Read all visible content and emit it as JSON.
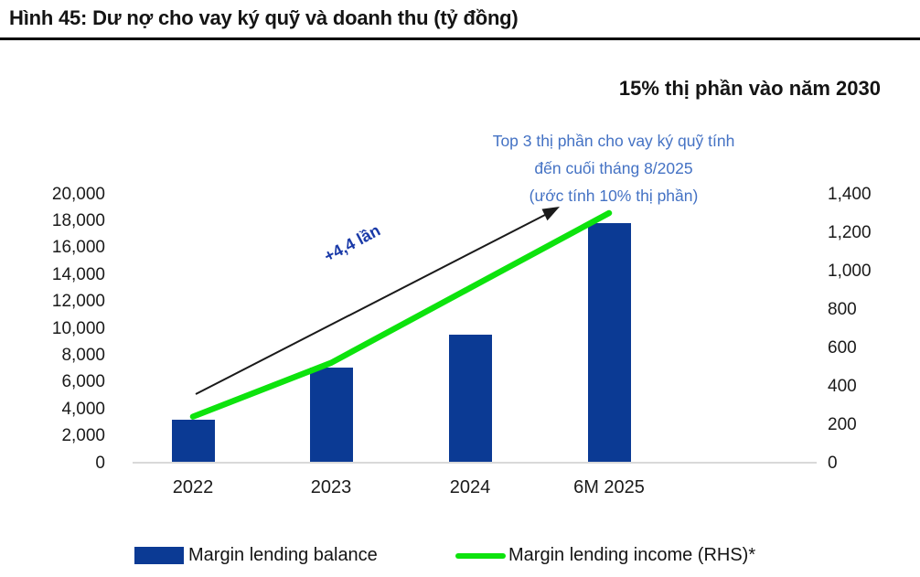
{
  "figure": {
    "title": "Hình 45: Dư nợ cho vay ký quỹ và doanh thu (tỷ đồng)",
    "subtitle": "15% thị phần vào năm 2030"
  },
  "annotations": {
    "growth_label": "+4,4 lần",
    "note_line1": "Top 3 thị phần cho vay ký quỹ tính",
    "note_line2": "đến cuối tháng 8/2025",
    "note_line3": "(ước tính 10% thị phần)"
  },
  "chart_data": {
    "type": "bar",
    "subtype": "bar+line combo, dual axis",
    "categories": [
      "2022",
      "2023",
      "2024",
      "6M 2025"
    ],
    "series": [
      {
        "name": "Margin lending balance",
        "type": "bar",
        "axis": "left",
        "color": "#0b3a94",
        "values": [
          3200,
          7100,
          9500,
          17800
        ]
      },
      {
        "name": "Margin lending income (RHS)*",
        "type": "line",
        "axis": "right",
        "color": "#0de30d",
        "values": [
          240,
          520,
          910,
          1300
        ]
      }
    ],
    "axis_left": {
      "min": 0,
      "max": 20000,
      "tick_step": 2000,
      "tick_labels_top_to_bottom": [
        "20,000",
        "18,000",
        "16,000",
        "14,000",
        "12,000",
        "10,000",
        "8,000",
        "6,000",
        "4,000",
        "2,000",
        "0"
      ]
    },
    "axis_right": {
      "min": 0,
      "max": 1400,
      "tick_step": 200,
      "tick_labels_top_to_bottom": [
        "1,400",
        "1,200",
        "1,000",
        "800",
        "600",
        "400",
        "200",
        "0"
      ]
    },
    "grid": false,
    "legend_position": "bottom"
  },
  "legend": {
    "items": [
      {
        "label": "Margin lending balance",
        "swatch": "bar",
        "color": "#0b3a94"
      },
      {
        "label": "Margin lending income (RHS)*",
        "swatch": "line",
        "color": "#0de30d"
      }
    ]
  },
  "colors": {
    "bar": "#0b3a94",
    "line": "#0de30d",
    "note_text": "#4472c4",
    "growth_text": "#1a3aa8",
    "baseline": "#d9d9d9",
    "title_rule": "#000000"
  }
}
